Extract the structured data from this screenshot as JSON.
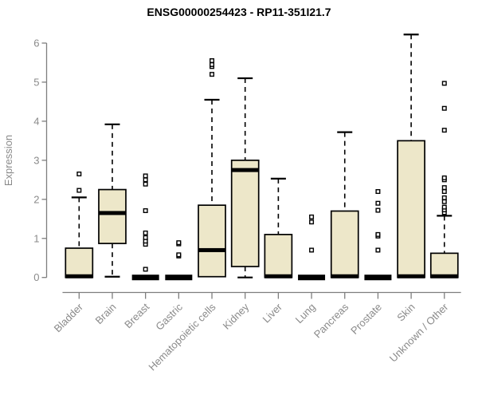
{
  "chart_data": {
    "type": "boxplot",
    "title": "ENSG00000254423 - RP11-351I21.7",
    "ylabel": "Expression",
    "xlabel": "",
    "ylim": [
      0,
      6
    ],
    "yticks": [
      "0",
      "1",
      "2",
      "3",
      "4",
      "5",
      "6"
    ],
    "grid": false,
    "legend": "none",
    "outlier_marker": "open-square-icon",
    "categories": [
      "Bladder",
      "Brain",
      "Breast",
      "Gastric",
      "Hematopoietic cells",
      "Kidney",
      "Liver",
      "Lung",
      "Pancreas",
      "Prostate",
      "Skin",
      "Unknown / Other"
    ],
    "series": [
      {
        "category": "Bladder",
        "low": 0,
        "q1": 0,
        "median": 0.03,
        "q3": 0.75,
        "high": 2.05,
        "outliers": [
          2.23,
          2.65
        ]
      },
      {
        "category": "Brain",
        "low": 0.02,
        "q1": 0.87,
        "median": 1.65,
        "q3": 2.25,
        "high": 3.92,
        "outliers": []
      },
      {
        "category": "Breast",
        "low": 0,
        "q1": 0,
        "median": 0,
        "q3": 0,
        "high": 0,
        "outliers": [
          0.21,
          0.85,
          0.93,
          1.02,
          1.14,
          1.71,
          2.39,
          2.5,
          2.6
        ]
      },
      {
        "category": "Gastric",
        "low": 0,
        "q1": 0,
        "median": 0,
        "q3": 0,
        "high": 0,
        "outliers": [
          0.55,
          0.58,
          0.86,
          0.89
        ]
      },
      {
        "category": "Hematopoietic cells",
        "low": 0.02,
        "q1": 0.02,
        "median": 0.7,
        "q3": 1.85,
        "high": 4.55,
        "outliers": [
          5.2,
          5.4,
          5.45,
          5.55
        ]
      },
      {
        "category": "Kidney",
        "low": 0,
        "q1": 0.28,
        "median": 2.75,
        "q3": 3.0,
        "high": 5.1,
        "outliers": []
      },
      {
        "category": "Liver",
        "low": 0,
        "q1": 0,
        "median": 0.03,
        "q3": 1.1,
        "high": 2.53,
        "outliers": []
      },
      {
        "category": "Lung",
        "low": 0,
        "q1": 0,
        "median": 0,
        "q3": 0,
        "high": 0,
        "outliers": [
          0.7,
          1.42,
          1.55
        ]
      },
      {
        "category": "Pancreas",
        "low": 0,
        "q1": 0,
        "median": 0.03,
        "q3": 1.7,
        "high": 3.72,
        "outliers": []
      },
      {
        "category": "Prostate",
        "low": 0,
        "q1": 0,
        "median": 0,
        "q3": 0,
        "high": 0,
        "outliers": [
          0.7,
          1.06,
          1.1,
          1.72,
          1.9,
          2.2
        ]
      },
      {
        "category": "Skin",
        "low": 0,
        "q1": 0,
        "median": 0.03,
        "q3": 3.5,
        "high": 6.22,
        "outliers": []
      },
      {
        "category": "Unknown / Other",
        "low": 0,
        "q1": 0,
        "median": 0.03,
        "q3": 0.62,
        "high": 1.58,
        "outliers": [
          1.66,
          1.73,
          1.8,
          1.94,
          2.04,
          2.2,
          2.3,
          2.5,
          2.55,
          3.77,
          4.33,
          4.97
        ]
      }
    ],
    "colors": {
      "box_fill": "#EDE7C9",
      "box_border": "#000000",
      "median": "#000000",
      "whisker": "#000000",
      "axis": "#7e7e7e",
      "tick_label": "#8a8a8a",
      "title": "#000000",
      "background": "#ffffff"
    }
  }
}
